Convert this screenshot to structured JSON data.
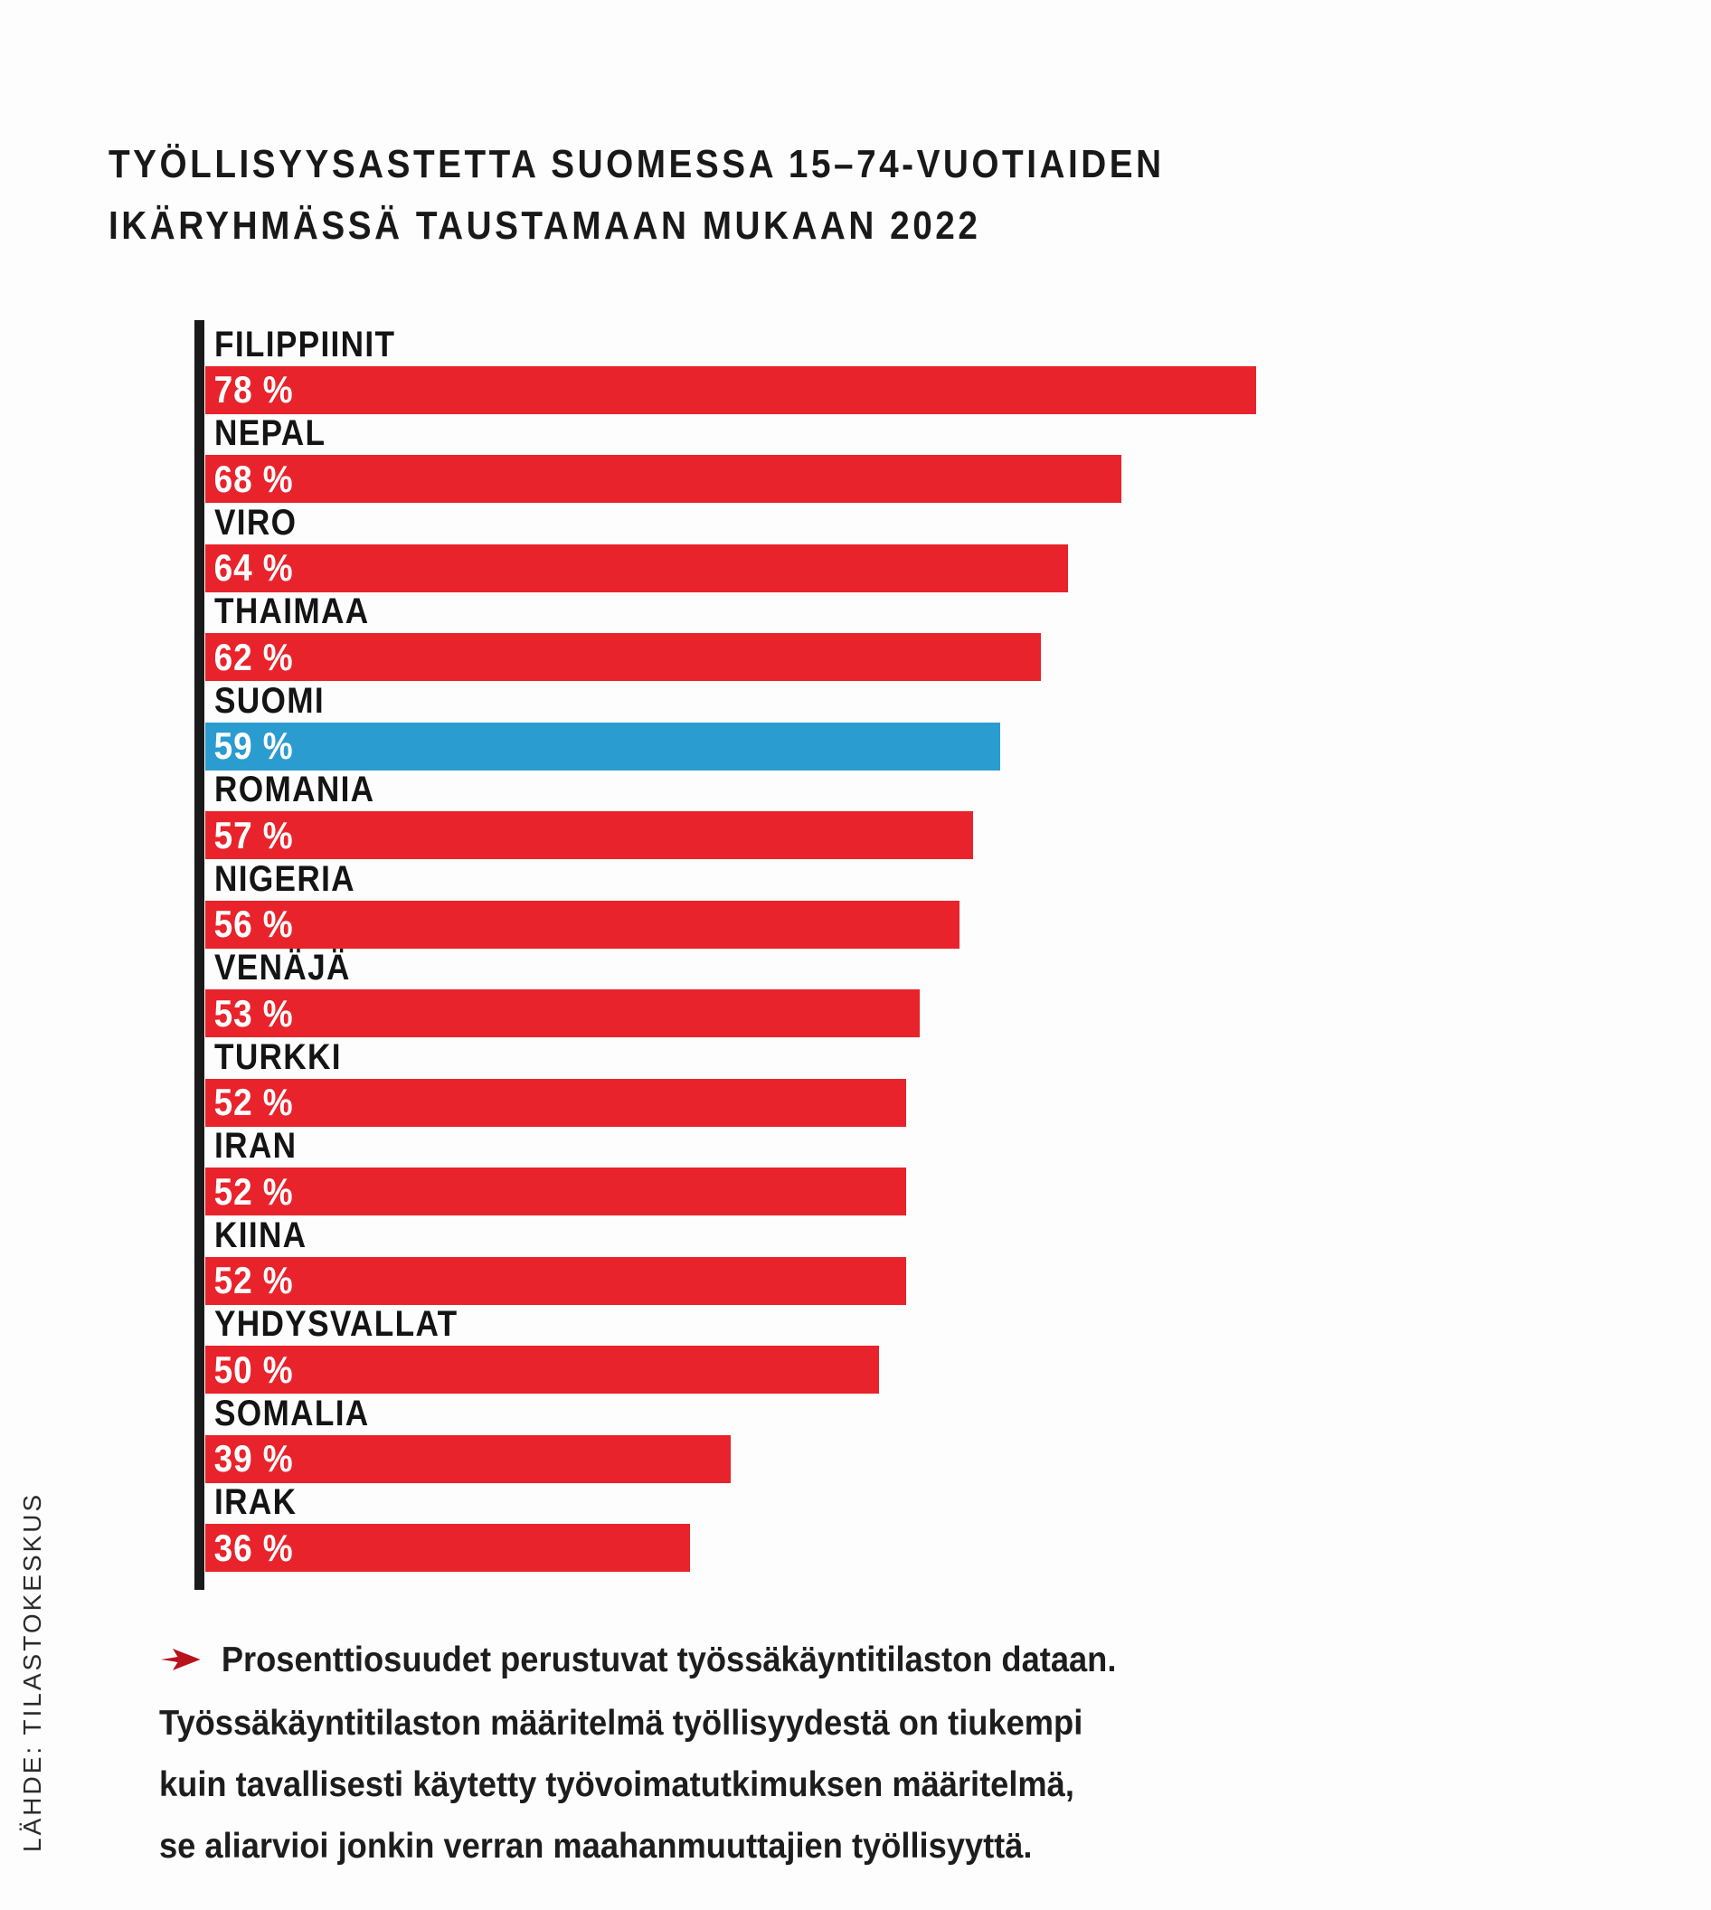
{
  "title": {
    "line1": "TYÖLLISYYSASTETTA SUOMESSA 15–74-VUOTIAIDEN",
    "line2": "IKÄRYHMÄSSÄ TAUSTAMAAN MUKAAN 2022"
  },
  "source_label": "LÄHDE: TILASTOKESKUS",
  "footnote": {
    "icon": "red-arrow-icon",
    "icon_color": "#b8121d",
    "lines": [
      "Prosenttiosuudet perustuvat työssäkäyntitilaston dataan.",
      "Työssäkäyntitilaston määritelmä työllisyydestä on tiukempi",
      "kuin tavallisesti käytetty työvoimatutkimuksen määritelmä,",
      "se aliarvioi jonkin verran maahanmuuttajien työllisyyttä."
    ]
  },
  "chart_data": {
    "type": "bar",
    "orientation": "horizontal",
    "title": "TYÖLLISYYSASTETTA SUOMESSA 15–74-VUOTIAIDEN IKÄRYHMÄSSÄ TAUSTAMAAN MUKAAN 2022",
    "categories": [
      "FILIPPIINIT",
      "NEPAL",
      "VIRO",
      "THAIMAA",
      "SUOMI",
      "ROMANIA",
      "NIGERIA",
      "VENÄJÄ",
      "TURKKI",
      "IRAN",
      "KIINA",
      "YHDYSVALLAT",
      "SOMALIA",
      "IRAK"
    ],
    "values": [
      78,
      68,
      64,
      62,
      59,
      57,
      56,
      53,
      52,
      52,
      52,
      50,
      39,
      36
    ],
    "value_labels": [
      "78 %",
      "68 %",
      "64 %",
      "62 %",
      "59 %",
      "57 %",
      "56 %",
      "53 %",
      "52 %",
      "52 %",
      "52 %",
      "50 %",
      "39 %",
      "36 %"
    ],
    "unit": "%",
    "axis_max": 100,
    "bar_color": "#e9232b",
    "highlight_index": 4,
    "highlight_category": "SUOMI",
    "highlight_color": "#2b9cd0",
    "grid": false,
    "legend": false
  }
}
